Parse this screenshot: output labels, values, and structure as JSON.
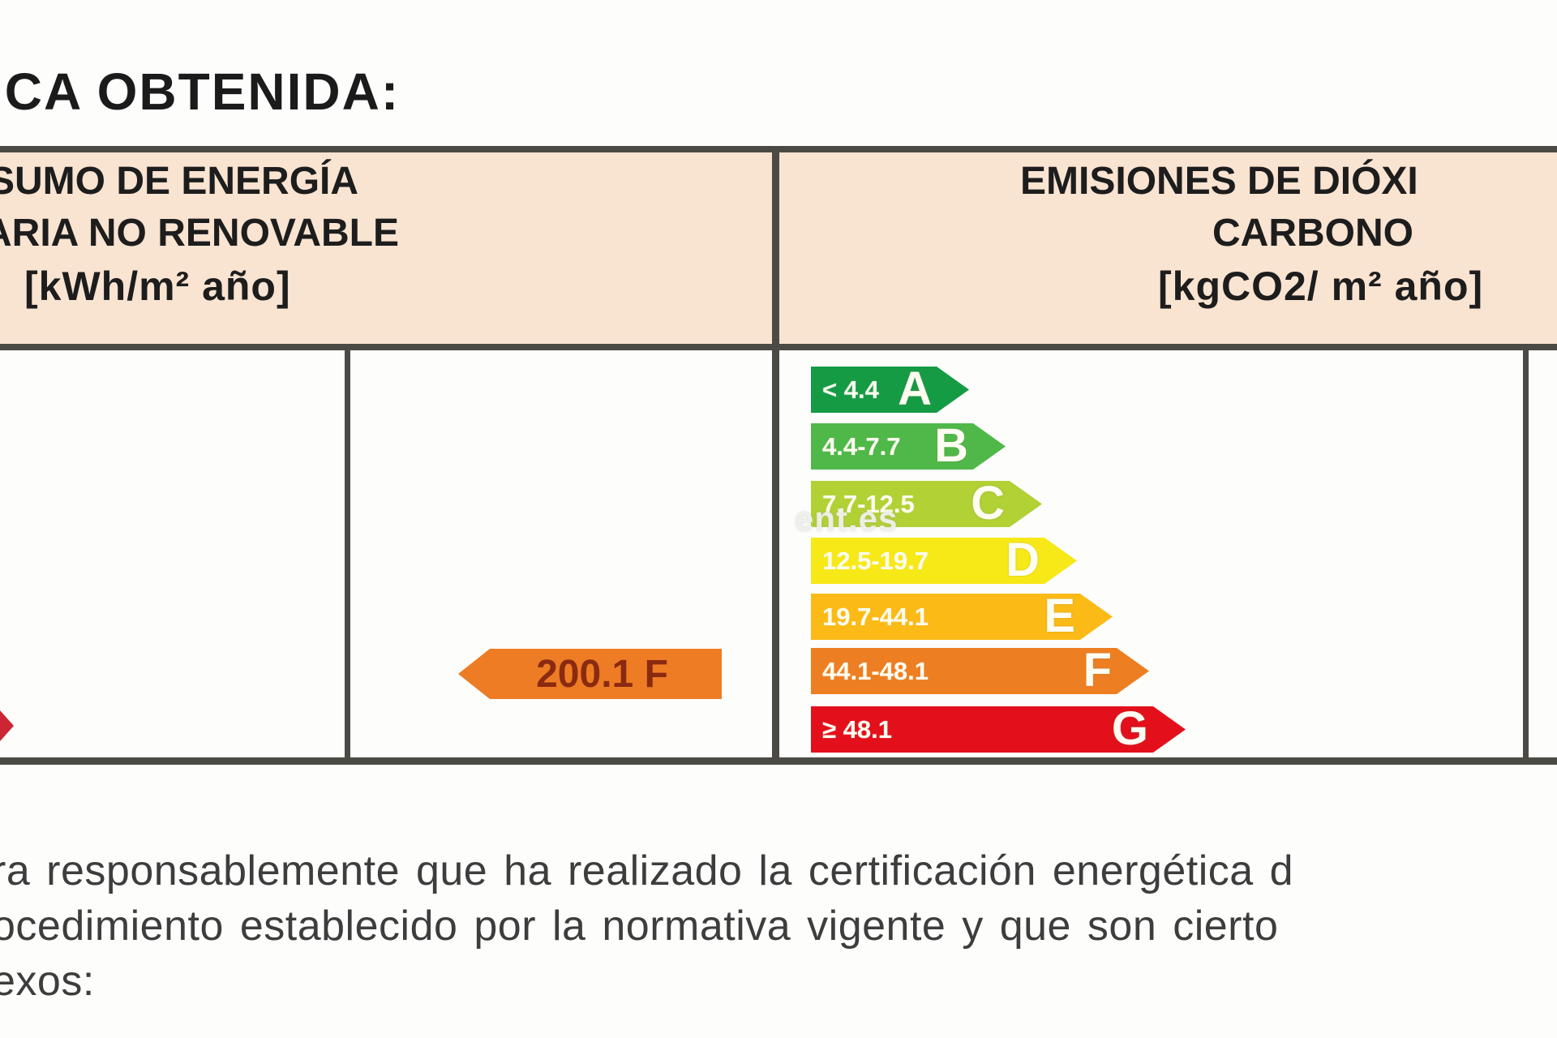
{
  "page": {
    "title": "ICA OBTENIDA:"
  },
  "table": {
    "left_column": {
      "header_line1": "SUMO DE ENERGÍA",
      "header_line2": "ARIA NO RENOVABLE",
      "header_units": "[kWh/m² año]"
    },
    "right_column": {
      "header_line1": "EMISIONES DE DIÓXI",
      "header_line2": "CARBONO",
      "header_units": "[kgCO2/ m² año]"
    }
  },
  "rating_arrow": {
    "label": "200.1 F",
    "color": "#ee7c25",
    "text_color": "#8a2a10"
  },
  "emissions_scale": {
    "rows": [
      {
        "range": "< 4.4",
        "letter": "A",
        "color": "#169b45"
      },
      {
        "range": "4.4-7.7",
        "letter": "B",
        "color": "#4fb848"
      },
      {
        "range": "7.7-12.5",
        "letter": "C",
        "color": "#b1d135"
      },
      {
        "range": "12.5-19.7",
        "letter": "D",
        "color": "#f7e818"
      },
      {
        "range": "19.7-44.1",
        "letter": "E",
        "color": "#fbba16"
      },
      {
        "range": "44.1-48.1",
        "letter": "F",
        "color": "#ee7e22"
      },
      {
        "range": "≥ 48.1",
        "letter": "G",
        "color": "#e3101c"
      }
    ]
  },
  "fragment_arrow": {
    "color": "#cb2631"
  },
  "watermark": "ent.es",
  "footer": {
    "line1": "ra responsablemente que ha realizado la certificación energética d",
    "line2": "ocedimiento establecido por la normativa vigente y que son cierto",
    "line3": "exos:"
  },
  "colors": {
    "header_bg": "#f9e3d1",
    "border": "#4b4a44",
    "footer_text": "#3d3d3d"
  }
}
